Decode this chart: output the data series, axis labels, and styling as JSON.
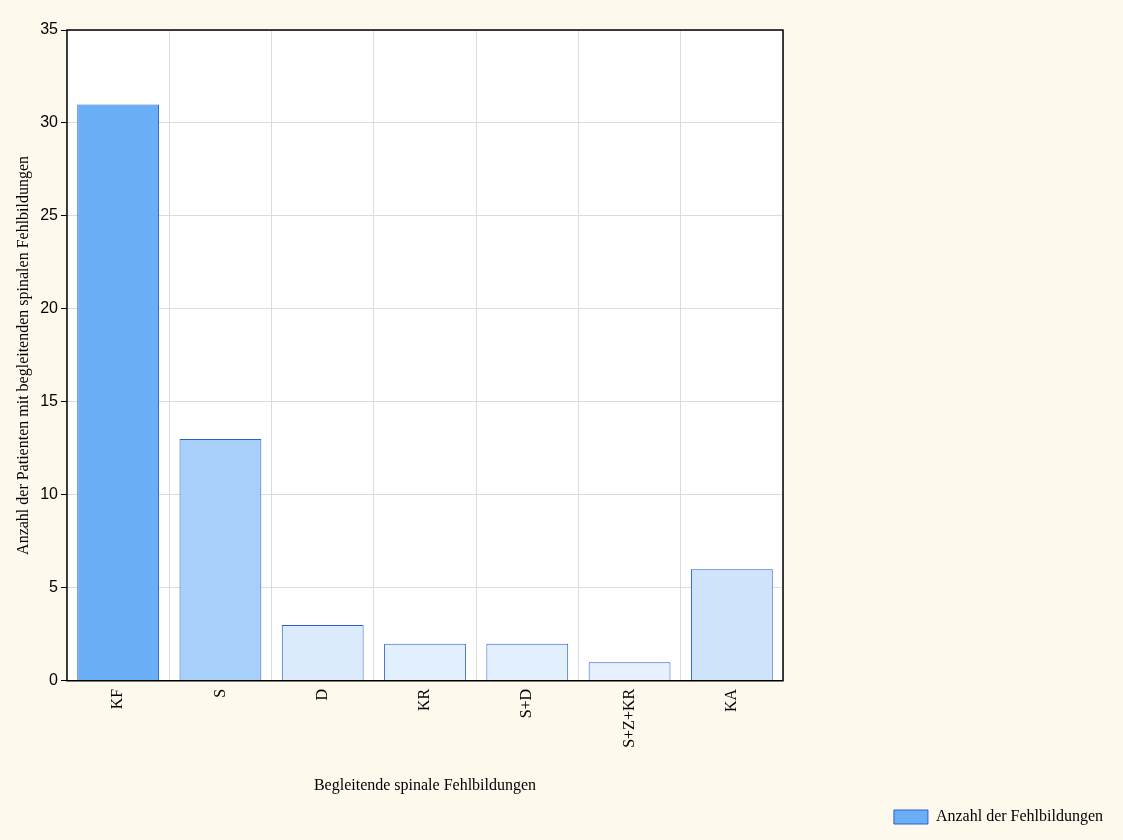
{
  "chart_data": {
    "type": "bar",
    "xlabel": "Begleitende spinale Fehlbildungen",
    "ylabel": "Anzahl der Patienten mit begleitenden spinalen Fehlbildungen",
    "categories": [
      "KF",
      "S",
      "D",
      "KR",
      "S+D",
      "S+Z+KR",
      "KA"
    ],
    "series": [
      {
        "name": "Anzahl der Fehlbildungen",
        "colors": [
          "#6aaef6",
          "#a8cff9",
          "#dcebfc",
          "#e2effd",
          "#e2effd",
          "#e6f1fd",
          "#cfe4fb"
        ],
        "values": [
          31,
          13,
          3,
          2,
          2,
          1,
          6
        ]
      }
    ],
    "ylim": [
      0,
      35
    ],
    "yticks": [
      0,
      5,
      10,
      15,
      20,
      25,
      30,
      35
    ],
    "grid": true,
    "legend": "bottom right"
  }
}
